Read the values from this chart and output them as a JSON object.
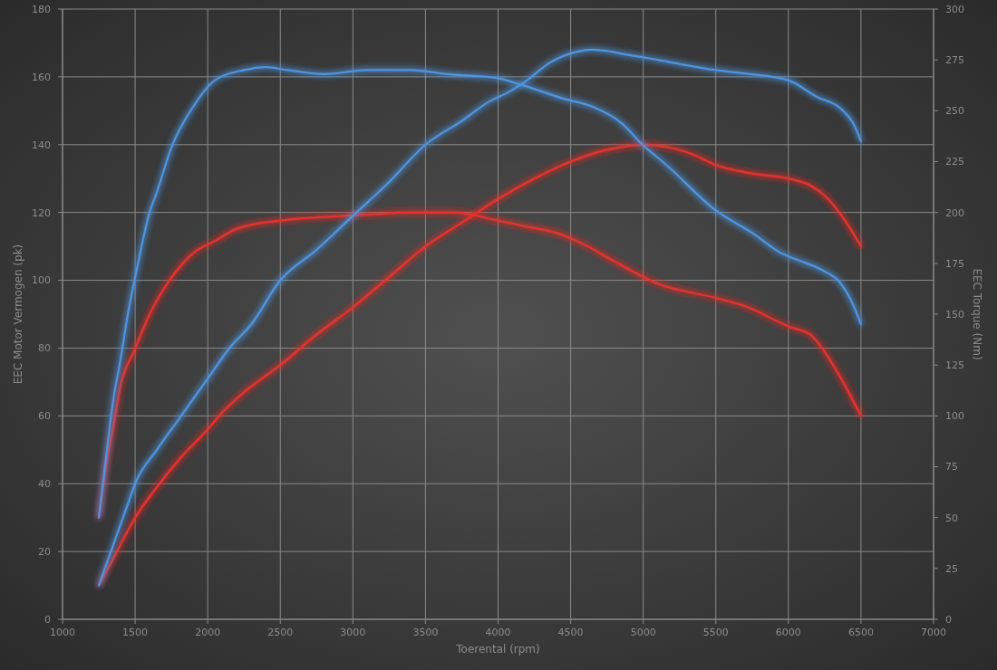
{
  "chart_data": {
    "type": "line",
    "xlabel": "Toerental (rpm)",
    "ylabel": "EEC Motor Vermogen (pk)",
    "y2label": "EEC Torque (Nm)",
    "xlim": [
      1000,
      7000
    ],
    "xticks": [
      1000,
      1500,
      2000,
      2500,
      3000,
      3500,
      4000,
      4500,
      5000,
      5500,
      6000,
      6500,
      7000
    ],
    "ylim": [
      0,
      180
    ],
    "yticks": [
      0,
      20,
      40,
      60,
      80,
      100,
      120,
      140,
      160,
      180
    ],
    "y2lim": [
      0,
      300
    ],
    "y2ticks": [
      0,
      25,
      50,
      75,
      100,
      125,
      150,
      175,
      200,
      225,
      250,
      275,
      300
    ],
    "grid": true,
    "series": [
      {
        "color": "#e8322e",
        "x": [
          1250,
          1350,
          1500,
          1650,
          1800,
          2000,
          2100,
          2250,
          2500,
          2750,
          3000,
          3250,
          3500,
          3750,
          4000,
          4250,
          4500,
          4750,
          5000,
          5200,
          5350,
          5500,
          5750,
          6000,
          6150,
          6250,
          6400,
          6500
        ],
        "values": [
          10,
          18,
          30,
          39,
          47,
          56,
          61,
          67,
          75,
          84,
          92,
          101,
          110,
          117,
          124,
          130,
          135,
          138.5,
          140,
          139,
          137,
          134,
          131.5,
          130,
          128,
          125,
          117,
          110
        ]
      },
      {
        "color": "#e8322e",
        "axis": "y2",
        "x": [
          1250,
          1300,
          1350,
          1400,
          1500,
          1600,
          1750,
          1900,
          2050,
          2200,
          2500,
          2850,
          3100,
          3400,
          3700,
          4000,
          4200,
          4400,
          4600,
          4800,
          5100,
          5500,
          5700,
          6000,
          6150,
          6250,
          6350,
          6500
        ],
        "values": [
          50,
          75,
          95,
          115,
          133,
          150,
          168,
          180,
          186,
          192,
          196,
          198,
          199,
          200,
          200,
          196,
          193,
          190,
          184,
          176,
          165,
          158,
          154,
          144,
          140,
          131.5,
          120,
          100
        ]
      },
      {
        "color": "#4f95e0",
        "x": [
          1250,
          1350,
          1450,
          1500,
          1650,
          1800,
          2000,
          2150,
          2300,
          2500,
          2750,
          3000,
          3250,
          3500,
          3750,
          3950,
          4050,
          4200,
          4350,
          4550,
          4650,
          4900,
          5100,
          5500,
          5700,
          6000,
          6200,
          6350,
          6450,
          6500
        ],
        "values": [
          10,
          22,
          34,
          40,
          50,
          59,
          71,
          80,
          87,
          100,
          109,
          119,
          129,
          140,
          147,
          153,
          155,
          159,
          164,
          167.5,
          168,
          166.5,
          165,
          162,
          161,
          159,
          154,
          151,
          146,
          141
        ]
      },
      {
        "color": "#4f95e0",
        "axis": "y2",
        "x": [
          1250,
          1300,
          1350,
          1400,
          1450,
          1500,
          1600,
          1650,
          1750,
          1900,
          2050,
          2250,
          2400,
          2550,
          2800,
          3100,
          3400,
          3650,
          4000,
          4150,
          4450,
          4650,
          4850,
          5000,
          5150,
          5500,
          5750,
          5950,
          6050,
          6250,
          6350,
          6450,
          6500
        ],
        "values": [
          50,
          80,
          108,
          128,
          150,
          168,
          200,
          210,
          232,
          252,
          265,
          270,
          271.5,
          270,
          268,
          270,
          270,
          268,
          266,
          263,
          256,
          252,
          244,
          233,
          224,
          201,
          190,
          180,
          177,
          171,
          166,
          154,
          145
        ]
      }
    ]
  }
}
